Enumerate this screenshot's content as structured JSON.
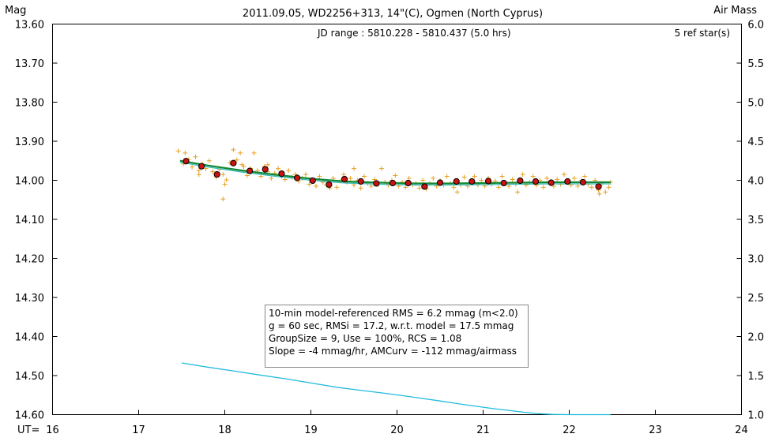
{
  "header": {
    "left_label": "Mag",
    "title": "2011.09.05, WD2256+313, 14\"(C), Ogmen (North Cyprus)",
    "right_label": "Air Mass",
    "jd_range": "JD range : 5810.228 - 5810.437 (5.0 hrs)",
    "ref_stars": "5 ref star(s)",
    "x_prefix": "UT="
  },
  "stats": [
    "10-min model-referenced RMS = 6.2 mmag (m<2.0)",
    "g = 60 sec, RMSi = 17.2, w.r.t. model = 17.5 mmag",
    "GroupSize = 9, Use = 100%, RCS = 1.08",
    "Slope = -4 mmag/hr, AMCurv = -112 mmag/airmass"
  ],
  "colors": {
    "raw": "#e8a020",
    "group_fill": "#cc1111",
    "fit_line": "#118833",
    "model_line": "#33bbbb",
    "airmass": "#22bbdd"
  },
  "chart_data": {
    "type": "scatter",
    "x_axis": {
      "label": "UT=",
      "range": [
        16,
        24
      ],
      "ticks": [
        "16",
        "17",
        "18",
        "19",
        "20",
        "21",
        "22",
        "23",
        "24"
      ]
    },
    "y_axis_left": {
      "label": "Mag",
      "range": [
        13.6,
        14.6
      ],
      "inverted": true,
      "ticks": [
        "13.60",
        "13.70",
        "13.80",
        "13.90",
        "14.00",
        "14.10",
        "14.20",
        "14.30",
        "14.40",
        "14.50",
        "14.60"
      ]
    },
    "y_axis_right": {
      "label": "Air Mass",
      "range": [
        1.0,
        6.0
      ],
      "ticks": [
        "6.0",
        "5.5",
        "5.0",
        "4.5",
        "4.0",
        "3.5",
        "3.0",
        "2.5",
        "2.0",
        "1.5",
        "1.0"
      ]
    },
    "grid": false,
    "series": [
      {
        "kind": "individual",
        "marker": "plus",
        "points": [
          [
            17.46,
            13.925
          ],
          [
            17.52,
            13.958
          ],
          [
            17.54,
            13.93
          ],
          [
            17.58,
            13.947
          ],
          [
            17.62,
            13.966
          ],
          [
            17.66,
            13.94
          ],
          [
            17.7,
            13.975
          ],
          [
            17.74,
            13.958
          ],
          [
            17.78,
            13.97
          ],
          [
            17.82,
            13.95
          ],
          [
            17.86,
            13.978
          ],
          [
            17.9,
            13.992
          ],
          [
            17.94,
            13.972
          ],
          [
            17.98,
            13.985
          ],
          [
            18.02,
            13.999
          ],
          [
            18.06,
            13.955
          ],
          [
            18.1,
            13.922
          ],
          [
            18.14,
            13.948
          ],
          [
            18.18,
            13.93
          ],
          [
            18.22,
            13.965
          ],
          [
            18.26,
            13.988
          ],
          [
            18.3,
            13.97
          ],
          [
            18.34,
            13.93
          ],
          [
            18.38,
            13.975
          ],
          [
            18.42,
            13.99
          ],
          [
            18.46,
            13.965
          ],
          [
            18.5,
            13.978
          ],
          [
            18.54,
            13.995
          ],
          [
            18.58,
            13.982
          ],
          [
            18.62,
            13.97
          ],
          [
            18.66,
            13.99
          ],
          [
            18.7,
            13.998
          ],
          [
            18.74,
            13.975
          ],
          [
            18.78,
            13.992
          ],
          [
            18.82,
            13.985
          ],
          [
            18.86,
            14.002
          ],
          [
            18.9,
            13.995
          ],
          [
            18.94,
            13.985
          ],
          [
            18.98,
            14.01
          ],
          [
            19.02,
            14.0
          ],
          [
            19.06,
            14.015
          ],
          [
            19.1,
            13.99
          ],
          [
            19.14,
            14.005
          ],
          [
            19.18,
            14.012
          ],
          [
            19.22,
            14.02
          ],
          [
            19.26,
            13.995
          ],
          [
            19.3,
            14.018
          ],
          [
            19.34,
            14.002
          ],
          [
            19.38,
            13.985
          ],
          [
            19.42,
            14.005
          ],
          [
            19.46,
            13.995
          ],
          [
            19.5,
            14.012
          ],
          [
            19.54,
            14.0
          ],
          [
            19.58,
            14.02
          ],
          [
            19.62,
            13.99
          ],
          [
            19.66,
            14.008
          ],
          [
            19.7,
            14.015
          ],
          [
            19.74,
            13.998
          ],
          [
            19.78,
            14.01
          ],
          [
            19.82,
            13.97
          ],
          [
            19.86,
            14.005
          ],
          [
            19.9,
            14.012
          ],
          [
            19.94,
            14.0
          ],
          [
            19.98,
            13.988
          ],
          [
            20.02,
            14.015
          ],
          [
            20.06,
            14.005
          ],
          [
            20.1,
            14.018
          ],
          [
            20.14,
            13.995
          ],
          [
            20.18,
            14.012
          ],
          [
            20.22,
            14.008
          ],
          [
            20.26,
            14.02
          ],
          [
            20.3,
            14.0
          ],
          [
            20.34,
            14.022
          ],
          [
            20.38,
            14.008
          ],
          [
            20.42,
            13.995
          ],
          [
            20.46,
            14.015
          ],
          [
            20.5,
            14.002
          ],
          [
            20.54,
            14.012
          ],
          [
            20.58,
            13.99
          ],
          [
            20.62,
            14.008
          ],
          [
            20.66,
            14.018
          ],
          [
            20.7,
            14.0
          ],
          [
            20.74,
            14.012
          ],
          [
            20.78,
            13.992
          ],
          [
            20.82,
            14.015
          ],
          [
            20.86,
            14.005
          ],
          [
            20.9,
            13.99
          ],
          [
            20.94,
            14.012
          ],
          [
            20.98,
            14.0
          ],
          [
            21.02,
            14.015
          ],
          [
            21.06,
            13.995
          ],
          [
            21.1,
            14.01
          ],
          [
            21.14,
            14.002
          ],
          [
            21.18,
            14.018
          ],
          [
            21.22,
            13.99
          ],
          [
            21.26,
            14.008
          ],
          [
            21.3,
            14.015
          ],
          [
            21.34,
            13.998
          ],
          [
            21.38,
            14.01
          ],
          [
            21.42,
            14.002
          ],
          [
            21.46,
            13.985
          ],
          [
            21.5,
            14.012
          ],
          [
            21.54,
            14.005
          ],
          [
            21.58,
            13.99
          ],
          [
            21.62,
            14.012
          ],
          [
            21.66,
            14.0
          ],
          [
            21.7,
            14.018
          ],
          [
            21.74,
            13.995
          ],
          [
            21.78,
            14.008
          ],
          [
            21.82,
            14.015
          ],
          [
            21.86,
            13.998
          ],
          [
            21.9,
            14.01
          ],
          [
            21.94,
            13.985
          ],
          [
            21.98,
            14.005
          ],
          [
            22.02,
            14.012
          ],
          [
            22.06,
            13.995
          ],
          [
            22.1,
            14.015
          ],
          [
            22.14,
            14.0
          ],
          [
            22.18,
            13.99
          ],
          [
            22.22,
            14.01
          ],
          [
            22.26,
            14.018
          ],
          [
            22.3,
            14.0
          ],
          [
            22.34,
            14.025
          ],
          [
            22.38,
            14.008
          ],
          [
            22.42,
            14.03
          ],
          [
            22.46,
            14.018
          ],
          [
            22.48,
            14.005
          ],
          [
            17.7,
            13.985
          ],
          [
            18.0,
            14.01
          ],
          [
            17.98,
            14.048
          ],
          [
            18.5,
            13.96
          ],
          [
            19.5,
            13.97
          ],
          [
            18.2,
            13.96
          ],
          [
            20.7,
            14.03
          ],
          [
            21.4,
            14.03
          ],
          [
            22.35,
            14.035
          ]
        ]
      },
      {
        "kind": "group_average",
        "marker": "circle",
        "points": [
          [
            17.55,
            13.951
          ],
          [
            17.73,
            13.964
          ],
          [
            17.91,
            13.985
          ],
          [
            18.1,
            13.956
          ],
          [
            18.29,
            13.976
          ],
          [
            18.47,
            13.972
          ],
          [
            18.66,
            13.983
          ],
          [
            18.84,
            13.994
          ],
          [
            19.02,
            14.001
          ],
          [
            19.21,
            14.011
          ],
          [
            19.39,
            13.997
          ],
          [
            19.58,
            14.003
          ],
          [
            19.76,
            14.008
          ],
          [
            19.95,
            14.007
          ],
          [
            20.13,
            14.007
          ],
          [
            20.32,
            14.016
          ],
          [
            20.5,
            14.006
          ],
          [
            20.69,
            14.003
          ],
          [
            20.87,
            14.003
          ],
          [
            21.06,
            14.002
          ],
          [
            21.24,
            14.007
          ],
          [
            21.43,
            14.001
          ],
          [
            21.61,
            14.003
          ],
          [
            21.79,
            14.006
          ],
          [
            21.98,
            14.003
          ],
          [
            22.16,
            14.005
          ],
          [
            22.34,
            14.016
          ]
        ]
      },
      {
        "kind": "fit_line",
        "points": [
          [
            17.48,
            13.95
          ],
          [
            17.8,
            13.962
          ],
          [
            18.2,
            13.975
          ],
          [
            18.6,
            13.986
          ],
          [
            19.0,
            13.996
          ],
          [
            19.4,
            14.003
          ],
          [
            19.8,
            14.006
          ],
          [
            20.2,
            14.008
          ],
          [
            20.6,
            14.008
          ],
          [
            21.0,
            14.007
          ],
          [
            21.4,
            14.006
          ],
          [
            21.8,
            14.005
          ],
          [
            22.2,
            14.005
          ],
          [
            22.48,
            14.005
          ]
        ]
      },
      {
        "kind": "airmass",
        "axis": "right",
        "points": [
          [
            17.5,
            1.662
          ],
          [
            17.8,
            1.608
          ],
          [
            18.1,
            1.56
          ],
          [
            18.4,
            1.508
          ],
          [
            18.7,
            1.46
          ],
          [
            19.0,
            1.405
          ],
          [
            19.3,
            1.35
          ],
          [
            19.6,
            1.308
          ],
          [
            19.9,
            1.268
          ],
          [
            20.2,
            1.222
          ],
          [
            20.5,
            1.175
          ],
          [
            20.8,
            1.125
          ],
          [
            21.1,
            1.08
          ],
          [
            21.4,
            1.04
          ],
          [
            21.6,
            1.015
          ],
          [
            21.8,
            1.003
          ],
          [
            22.0,
            1.0
          ],
          [
            22.2,
            1.0
          ],
          [
            22.4,
            1.0
          ],
          [
            22.48,
            1.0
          ]
        ]
      }
    ]
  }
}
